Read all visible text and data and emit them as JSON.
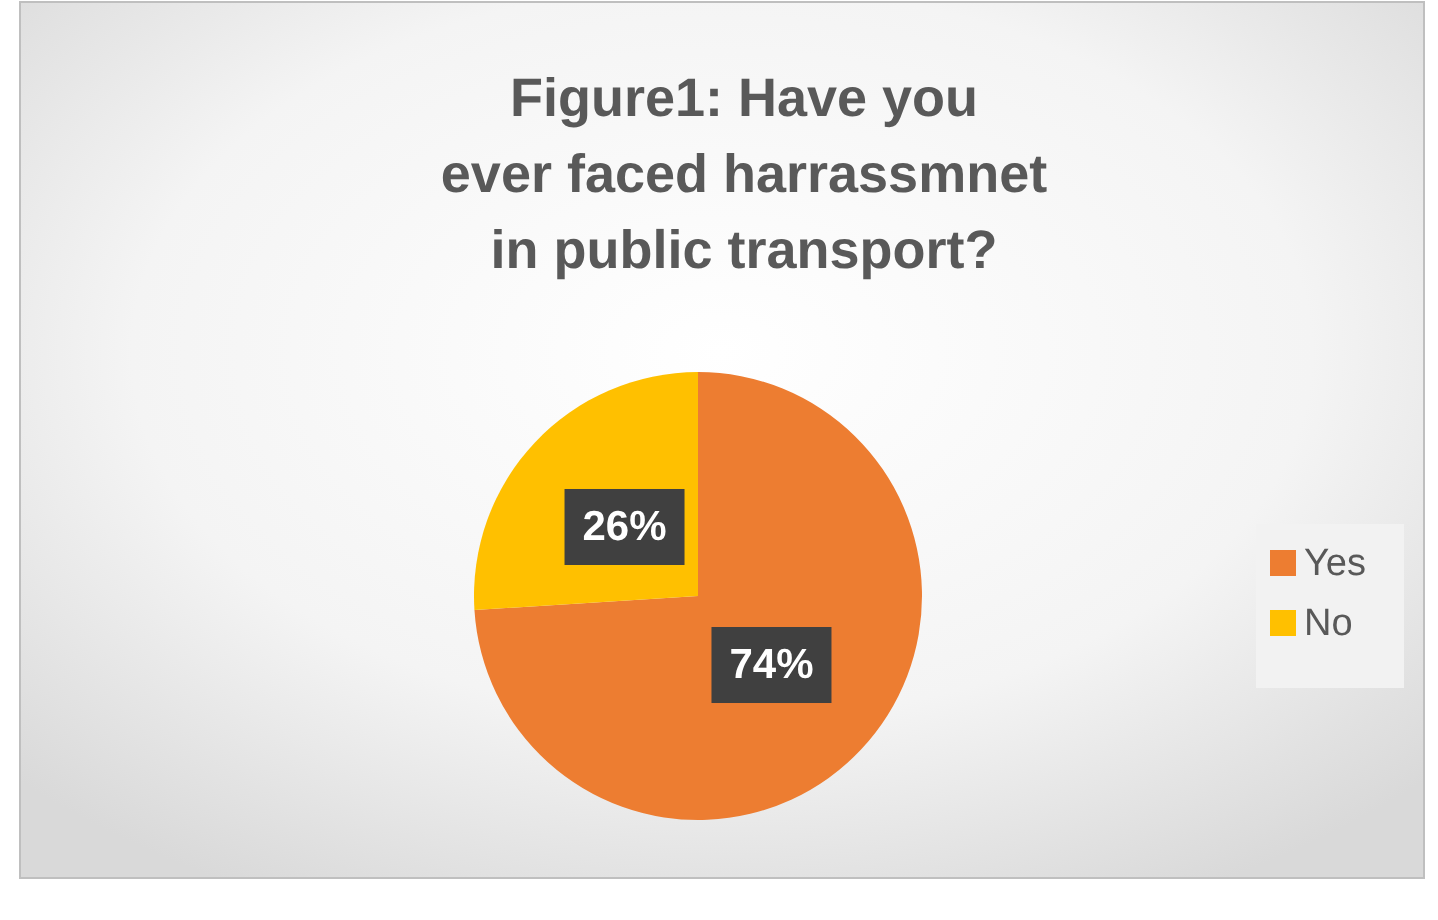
{
  "chart_data": {
    "type": "pie",
    "title": "Figure1: Have you\never faced harrassmnet\nin public transport?",
    "categories": [
      "Yes",
      "No"
    ],
    "values": [
      74,
      26
    ],
    "colors": [
      "#ed7d31",
      "#ffc000"
    ],
    "value_labels": [
      "74%",
      "26%"
    ],
    "legend": "right"
  }
}
